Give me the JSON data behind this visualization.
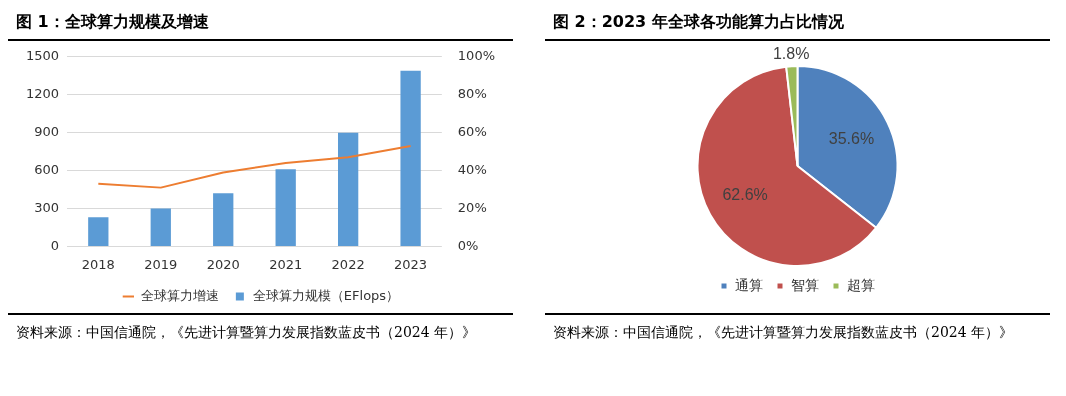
{
  "chart_data": [
    {
      "type": "bar",
      "title": "图 1：全球算力规模及增速",
      "categories": [
        "2018",
        "2019",
        "2020",
        "2021",
        "2022",
        "2023"
      ],
      "series": [
        {
          "name": "全球算力规模（EFlops）",
          "type": "bar",
          "color": "#5b9bd5",
          "values": [
            230,
            300,
            420,
            610,
            900,
            1390
          ]
        },
        {
          "name": "全球算力增速",
          "type": "line",
          "axis": "y2",
          "color": "#ed7d31",
          "values": [
            33,
            31,
            39,
            44,
            47,
            53
          ]
        }
      ],
      "ylim": [
        0,
        1500
      ],
      "yticks": [
        0,
        300,
        600,
        900,
        1200,
        1500
      ],
      "y2lim": [
        0,
        100
      ],
      "y2ticks": [
        {
          "value": 0,
          "label": "0%"
        },
        {
          "value": 20,
          "label": "20%"
        },
        {
          "value": 40,
          "label": "40%"
        },
        {
          "value": 60,
          "label": "60%"
        },
        {
          "value": 80,
          "label": "80%"
        },
        {
          "value": 100,
          "label": "100%"
        }
      ],
      "grid": "y",
      "legend": "bottom",
      "marker": "none",
      "annotations": [
        "资料来源：中国信通院，《先进计算暨算力发展指数蓝皮书（2024 年）》"
      ]
    },
    {
      "type": "pie",
      "title": "图 2：2023 年全球各功能算力占比情况",
      "categories": [
        "通算",
        "智算",
        "超算"
      ],
      "values": [
        35.6,
        62.6,
        1.8
      ],
      "colors": [
        "#4f81bd",
        "#c0504d",
        "#9bbb59"
      ],
      "value_labels": [
        "35.6%",
        "62.6%",
        "1.8%"
      ],
      "legend": "bottom",
      "annotations": [
        "资料来源：中国信通院，《先进计算暨算力发展指数蓝皮书（2024 年）》"
      ]
    }
  ]
}
